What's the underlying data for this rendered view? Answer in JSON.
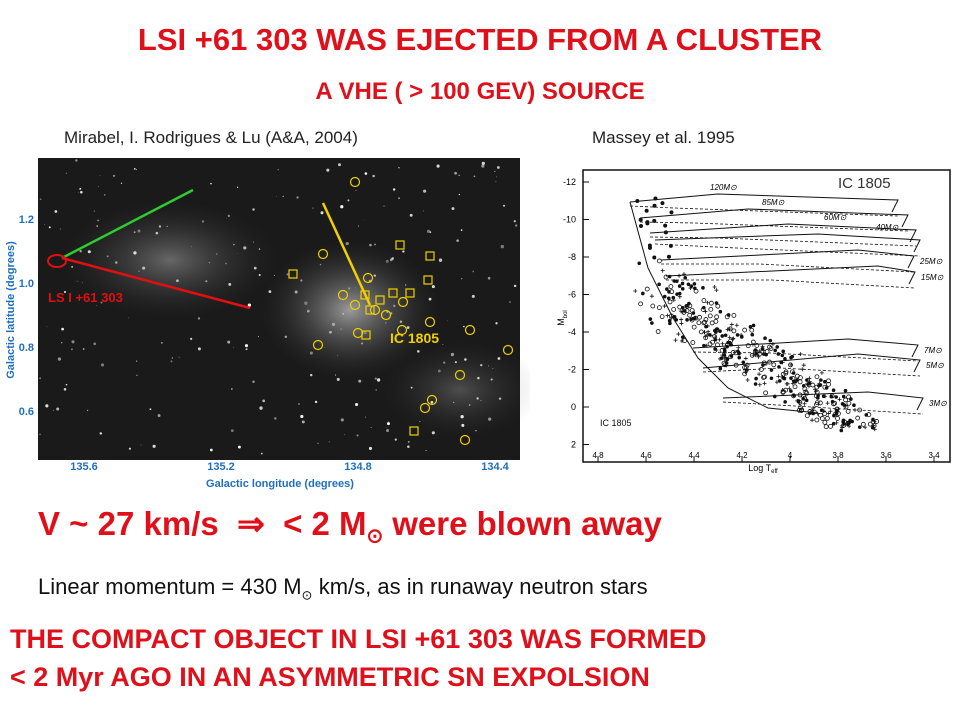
{
  "title": "LSI +61 303 WAS EJECTED FROM A CLUSTER",
  "subtitle": "A VHE ( > 100 GEV) SOURCE",
  "left_figure": {
    "caption": "Mirabel, I. Rodrigues & Lu  (A&A, 2004)",
    "y_axis_label": "Galactic latitude (degrees)",
    "x_axis_label": "Galactic longitude (degrees)",
    "y_ticks": [
      "1.2",
      "1.0",
      "0.8",
      "0.6"
    ],
    "x_ticks": [
      "135.6",
      "135.2",
      "134.8",
      "134.4"
    ],
    "source_label": "LS I +61 303",
    "cluster_label": "IC 1805"
  },
  "right_figure": {
    "caption": "Massey et al. 1995",
    "corner_label": "IC 1805",
    "inner_label": "IC 1805",
    "y_axis_label": "M",
    "y_axis_sub": "bol",
    "x_axis_label": "Log T",
    "x_axis_sub": "eff",
    "y_ticks": [
      "-12",
      "-10",
      "-8",
      "-6",
      "-4",
      "-2",
      "0",
      "2"
    ],
    "x_ticks": [
      "4.8",
      "4.6",
      "4.4",
      "4.2",
      "4",
      "3.8",
      "3.6",
      "3.4"
    ],
    "mass_tracks": [
      "120M⊙",
      "85M⊙",
      "60M⊙",
      "40M⊙",
      "25M⊙",
      "15M⊙",
      "7M⊙",
      "5M⊙",
      "3M⊙"
    ]
  },
  "velocity_line": {
    "speed": "V ~ 27 km/s",
    "arrow": "⇒",
    "mass": "< 2 M",
    "sun": "⊙",
    "rest": "were blown away"
  },
  "momentum_line": {
    "start": "Linear momentum = 430 M",
    "sun": "⊙",
    "rest": "km/s, as in runaway neutron stars"
  },
  "conclusion": [
    "THE COMPACT OBJECT IN LSI +61 303 WAS FORMED",
    "< 2 Myr AGO IN AN ASYMMETRIC SN EXPOLSION"
  ]
}
